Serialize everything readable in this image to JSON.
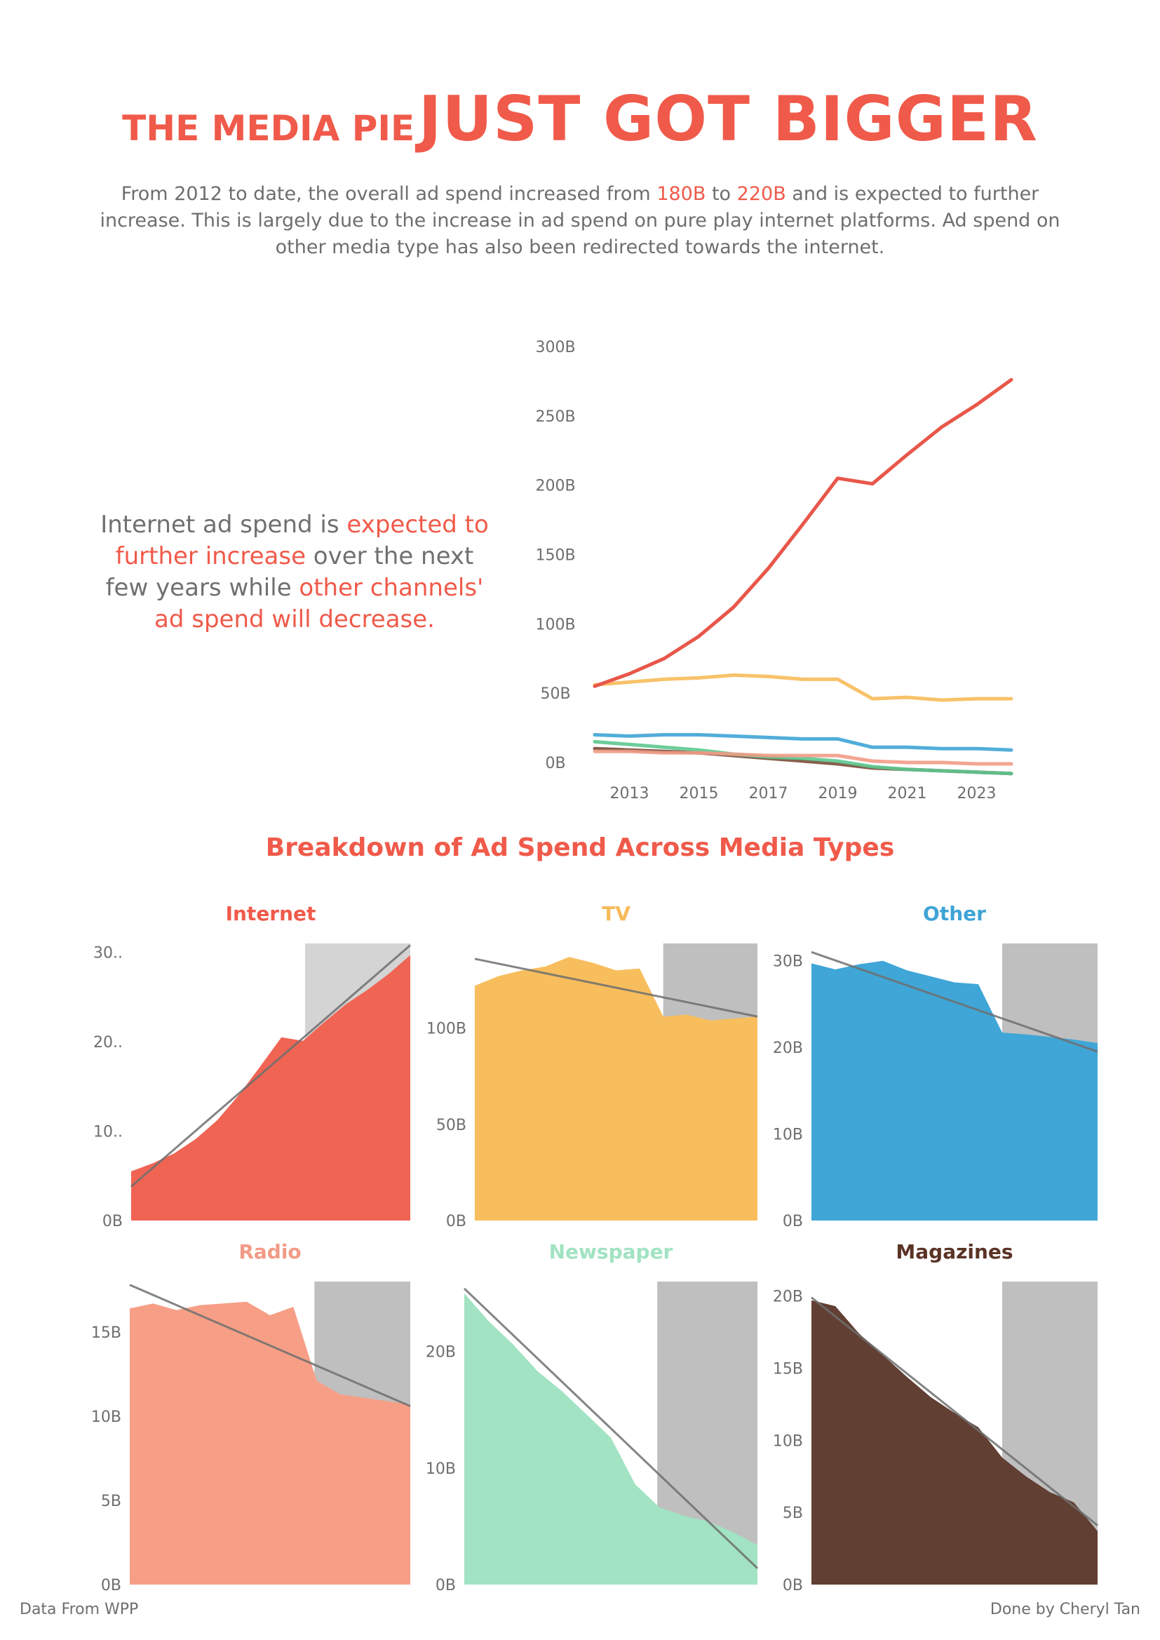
{
  "header": {
    "title_small": "THE MEDIA PIE",
    "title_big": "JUST GOT BIGGER",
    "subtitle_p1": "From 2012 to date, the overall ad spend increased from ",
    "subtitle_hl1": "180B",
    "subtitle_p2": " to ",
    "subtitle_hl2": "220B",
    "subtitle_p3": " and is expected to further increase. This is largely due to the increase in ad spend on pure play internet platforms. Ad spend on other media type has also been redirected towards the internet."
  },
  "annotation": {
    "p1": "Internet ad spend is ",
    "hl1": "expected to further increase",
    "p2": " over the next few years while ",
    "hl2": "other channels' ad spend will decrease."
  },
  "section_title": "Breakdown of  Ad Spend Across Media Types",
  "footer": {
    "left": "Data From WPP",
    "right": "Done by Cheryl Tan"
  },
  "chart_data": [
    {
      "type": "line",
      "x": [
        2012,
        2013,
        2014,
        2015,
        2016,
        2017,
        2018,
        2019,
        2020,
        2021,
        2022,
        2023,
        2024
      ],
      "x_ticks": [
        "2013",
        "2015",
        "2017",
        "2019",
        "2021",
        "2023"
      ],
      "y_ticks": [
        "0B",
        "50B",
        "100B",
        "150B",
        "200B",
        "250B",
        "300B"
      ],
      "ylim": [
        0,
        300
      ],
      "series": [
        {
          "color": "#e8574a",
          "values": [
            55,
            64,
            75,
            91,
            112,
            140,
            172,
            205,
            201,
            222,
            242,
            258,
            276
          ]
        },
        {
          "color": "#f7bb5a",
          "values": [
            56,
            58,
            60,
            61,
            63,
            62,
            60,
            60,
            46,
            47,
            45,
            46,
            46
          ]
        },
        {
          "color": "#3fa4d6",
          "values": [
            20,
            19,
            20,
            20,
            19,
            18,
            17,
            17,
            11,
            11,
            10,
            10,
            9
          ]
        },
        {
          "color": "#f29b86",
          "values": [
            8,
            8,
            7,
            7,
            6,
            5,
            5,
            5,
            1,
            0,
            0,
            -1,
            -1
          ]
        },
        {
          "color": "#5dc88f",
          "values": [
            15,
            13,
            11,
            9,
            6,
            4,
            3,
            1,
            -3,
            -5,
            -6,
            -7,
            -8
          ]
        },
        {
          "color": "#7a4d3a",
          "values": [
            10,
            9,
            8,
            7,
            5,
            3,
            1,
            -1,
            -4,
            -5,
            -6,
            -7,
            -8
          ]
        }
      ]
    },
    {
      "type": "area",
      "name": "Internet",
      "color": "#f06454",
      "title_color": "#f05a4a",
      "ylim": [
        0,
        31
      ],
      "y_ticks": [
        {
          "v": 0,
          "label": "0B"
        },
        {
          "v": 10,
          "label": "10.."
        },
        {
          "v": 20,
          "label": "20.."
        },
        {
          "v": 30,
          "label": "30.."
        }
      ],
      "values": [
        5.5,
        6.4,
        7.5,
        9.1,
        11.2,
        14.0,
        17.2,
        20.5,
        20.1,
        22.2,
        24.2,
        25.8,
        27.6,
        29.7
      ],
      "forecast_start": 8.1,
      "trend": [
        3.8,
        30.8
      ]
    },
    {
      "type": "area",
      "name": "TV",
      "color": "#f8be5d",
      "title_color": "#f7bb5a",
      "ylim": [
        0,
        144
      ],
      "y_ticks": [
        {
          "v": 0,
          "label": "0B"
        },
        {
          "v": 50,
          "label": "50B"
        },
        {
          "v": 100,
          "label": "100B"
        }
      ],
      "values": [
        122,
        127,
        130,
        132,
        137,
        134,
        130,
        131,
        106,
        107,
        104,
        105,
        106
      ],
      "forecast_start": 8.0,
      "trend": [
        136,
        106
      ]
    },
    {
      "type": "area",
      "name": "Other",
      "color": "#3fa6d7",
      "title_color": "#3fa4d6",
      "ylim": [
        0,
        32
      ],
      "y_ticks": [
        {
          "v": 0,
          "label": "0B"
        },
        {
          "v": 10,
          "label": "10B"
        },
        {
          "v": 20,
          "label": "20B"
        },
        {
          "v": 30,
          "label": "30B"
        }
      ],
      "values": [
        29.7,
        29.0,
        29.6,
        30.0,
        28.9,
        28.2,
        27.5,
        27.3,
        21.7,
        21.5,
        21.2,
        20.9,
        20.5
      ],
      "forecast_start": 8.0,
      "trend": [
        31.0,
        19.5
      ]
    },
    {
      "type": "area",
      "name": "Radio",
      "color": "#f69f86",
      "title_color": "#f29b86",
      "ylim": [
        0,
        18
      ],
      "y_ticks": [
        {
          "v": 0,
          "label": "0B"
        },
        {
          "v": 5,
          "label": "5B"
        },
        {
          "v": 10,
          "label": "10B"
        },
        {
          "v": 15,
          "label": "15B"
        }
      ],
      "values": [
        16.4,
        16.7,
        16.3,
        16.6,
        16.7,
        16.8,
        16.0,
        16.5,
        12.1,
        11.3,
        11.1,
        10.9,
        10.7
      ],
      "forecast_start": 7.9,
      "trend": [
        17.8,
        10.6
      ]
    },
    {
      "type": "area",
      "name": "Newspaper",
      "color": "#a1e3c2",
      "title_color": "#a1e3c2",
      "ylim": [
        0,
        26
      ],
      "y_ticks": [
        {
          "v": 0,
          "label": "0B"
        },
        {
          "v": 10,
          "label": "10B"
        },
        {
          "v": 20,
          "label": "20B"
        }
      ],
      "values": [
        25.0,
        22.6,
        20.6,
        18.3,
        16.6,
        14.6,
        12.6,
        8.6,
        6.6,
        5.9,
        5.4,
        4.5,
        3.4
      ],
      "forecast_start": 7.9,
      "trend": [
        25.4,
        1.4
      ]
    },
    {
      "type": "area",
      "name": "Magazines",
      "color": "#623f33",
      "title_color": "#5b3326",
      "ylim": [
        0,
        21
      ],
      "y_ticks": [
        {
          "v": 0,
          "label": "0B"
        },
        {
          "v": 5,
          "label": "5B"
        },
        {
          "v": 10,
          "label": "10B"
        },
        {
          "v": 15,
          "label": "15B"
        },
        {
          "v": 20,
          "label": "20B"
        }
      ],
      "values": [
        19.7,
        19.3,
        17.4,
        15.9,
        14.4,
        13.0,
        11.9,
        10.9,
        8.8,
        7.5,
        6.4,
        5.7,
        3.7
      ],
      "forecast_start": 8.0,
      "trend": [
        19.9,
        4.1
      ]
    }
  ]
}
